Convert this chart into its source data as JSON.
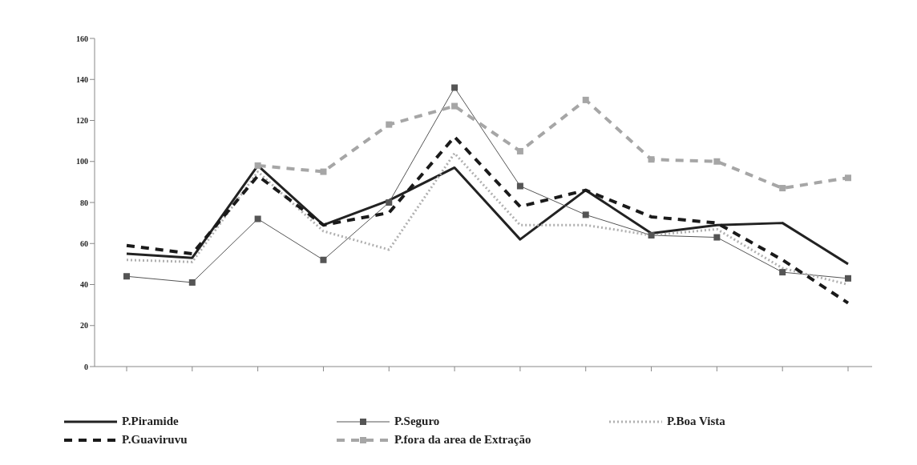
{
  "chart_data": {
    "type": "line",
    "categories": [
      null,
      null,
      null,
      null,
      null,
      null,
      null,
      null,
      null,
      null,
      null,
      null
    ],
    "ylim": [
      0,
      160
    ],
    "yticks": [
      0,
      20,
      40,
      60,
      80,
      100,
      120,
      140,
      160
    ],
    "grid": false,
    "legend": "bottom",
    "series": [
      {
        "name": "P.Piramide",
        "color": "#222222",
        "line_style": "solid",
        "marker": "none",
        "values": [
          55,
          53,
          98,
          69,
          81,
          97,
          62,
          86,
          65,
          69,
          70,
          50
        ]
      },
      {
        "name": "P.Seguro",
        "color": "#555555",
        "line_style": "solid",
        "marker": "square",
        "values": [
          44,
          41,
          72,
          52,
          80,
          136,
          88,
          74,
          64,
          63,
          46,
          43
        ]
      },
      {
        "name": "P.Boa Vista",
        "color": "#b0b0b0",
        "line_style": "dotted",
        "marker": "none",
        "values": [
          52,
          51,
          95,
          66,
          57,
          104,
          69,
          69,
          64,
          67,
          48,
          40
        ]
      },
      {
        "name": "P.Guaviruvu",
        "color": "#1a1a1a",
        "line_style": "dashed",
        "marker": "none",
        "values": [
          59,
          55,
          93,
          69,
          75,
          112,
          78,
          86,
          73,
          70,
          52,
          31
        ]
      },
      {
        "name": "P.fora da area de Extração",
        "color": "#a6a6a6",
        "line_style": "dashed",
        "marker": "square",
        "values": [
          null,
          null,
          98,
          95,
          118,
          127,
          105,
          130,
          101,
          100,
          87,
          92
        ]
      }
    ]
  }
}
